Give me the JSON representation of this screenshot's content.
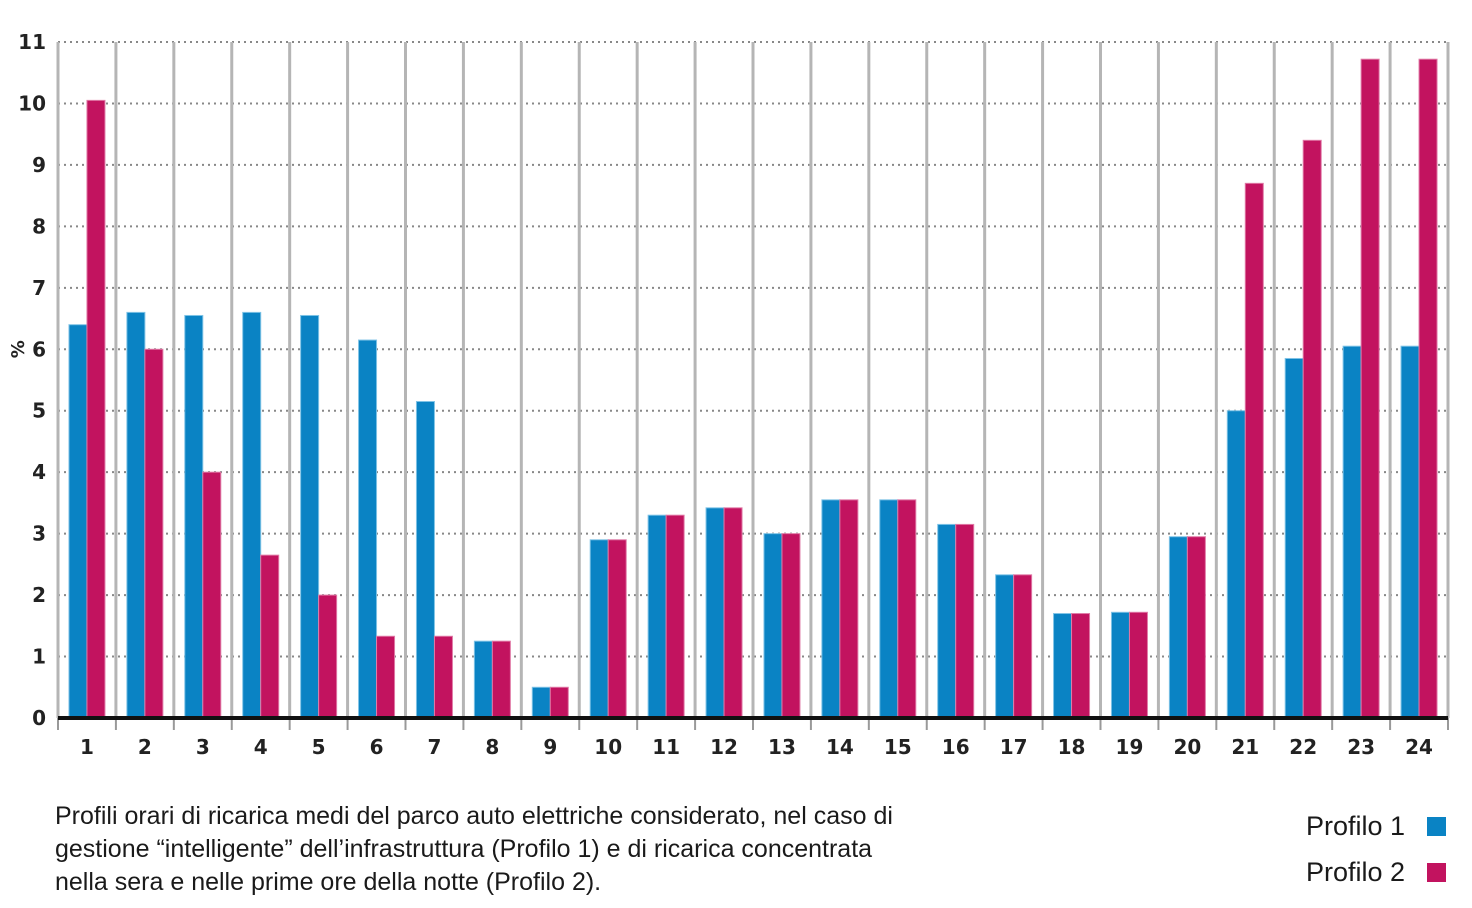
{
  "chart_data": {
    "type": "bar",
    "categories": [
      "1",
      "2",
      "3",
      "4",
      "5",
      "6",
      "7",
      "8",
      "9",
      "10",
      "11",
      "12",
      "13",
      "14",
      "15",
      "16",
      "17",
      "18",
      "19",
      "20",
      "21",
      "22",
      "23",
      "24"
    ],
    "series": [
      {
        "name": "Profilo 1",
        "color": "#0a83c4",
        "values": [
          6.4,
          6.6,
          6.55,
          6.6,
          6.55,
          6.15,
          5.15,
          1.25,
          0.5,
          2.9,
          3.3,
          3.42,
          3.0,
          3.55,
          3.55,
          3.15,
          2.33,
          1.7,
          1.72,
          2.95,
          5.0,
          5.85,
          6.05,
          6.05
        ]
      },
      {
        "name": "Profilo 2",
        "color": "#c2135f",
        "values": [
          10.05,
          6.0,
          4.0,
          2.65,
          2.0,
          1.33,
          1.33,
          1.25,
          0.5,
          2.9,
          3.3,
          3.42,
          3.0,
          3.55,
          3.55,
          3.15,
          2.33,
          1.7,
          1.72,
          2.95,
          8.7,
          9.4,
          10.72,
          10.72
        ]
      }
    ],
    "ylabel": "%",
    "ylim": [
      0,
      11
    ],
    "yticks": [
      0,
      1,
      2,
      3,
      4,
      5,
      6,
      7,
      8,
      9,
      10,
      11
    ],
    "grid": true,
    "legend_position": "bottom-right"
  },
  "caption": "Profili orari di ricarica medi del parco auto elettriche considerato, nel caso di\ngestione “intelligente” dell’infrastruttura (Profilo 1) e di ricarica concentrata\nnella sera e nelle prime ore della notte (Profilo 2).",
  "legend": [
    {
      "label": "Profilo 1",
      "color": "#0a83c4"
    },
    {
      "label": "Profilo 2",
      "color": "#c2135f"
    }
  ]
}
